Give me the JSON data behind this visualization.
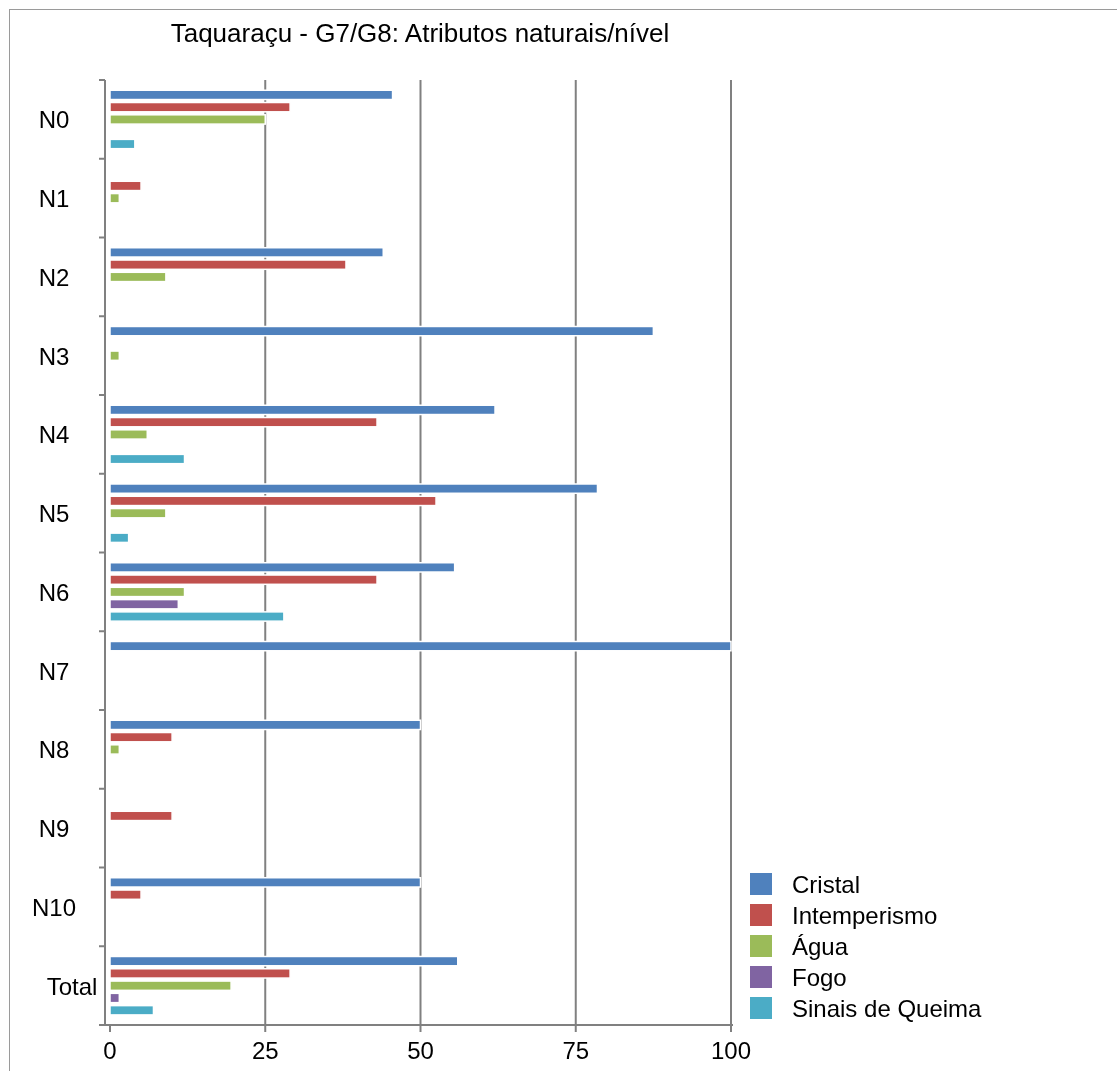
{
  "chart_data": {
    "type": "bar",
    "orientation": "horizontal",
    "title": "Taquaraçu - G7/G8: Atributos naturais/nível",
    "categories": [
      "N0",
      "N1",
      "N2",
      "N3",
      "N4",
      "N5",
      "N6",
      "N7",
      "N8",
      "N9",
      "N10",
      "Total"
    ],
    "series": [
      {
        "name": "Cristal",
        "color": "#4f81bd",
        "values": [
          45.5,
          0,
          44,
          87.5,
          62,
          78.5,
          55.5,
          100,
          50,
          0,
          50,
          56
        ]
      },
      {
        "name": "Intemperismo",
        "color": "#c0504d",
        "values": [
          29,
          5,
          38,
          0,
          43,
          52.5,
          43,
          0,
          10,
          10,
          5,
          29
        ]
      },
      {
        "name": "Água",
        "color": "#9bbb59",
        "values": [
          25,
          1.5,
          9,
          1.5,
          6,
          9,
          12,
          0,
          1.5,
          0,
          0,
          19.5
        ]
      },
      {
        "name": "Fogo",
        "color": "#8064a2",
        "values": [
          0,
          0,
          0,
          0,
          0,
          0,
          11,
          0,
          0,
          0,
          0,
          1.5
        ]
      },
      {
        "name": "Sinais de Queima",
        "color": "#4bacc6",
        "values": [
          4,
          0,
          0,
          0,
          12,
          3,
          28,
          0,
          0,
          0,
          0,
          7
        ]
      }
    ],
    "xlim": [
      0,
      100
    ],
    "xticks": [
      0,
      25,
      50,
      75,
      100
    ],
    "grid": "x",
    "legend": "bottom right"
  }
}
